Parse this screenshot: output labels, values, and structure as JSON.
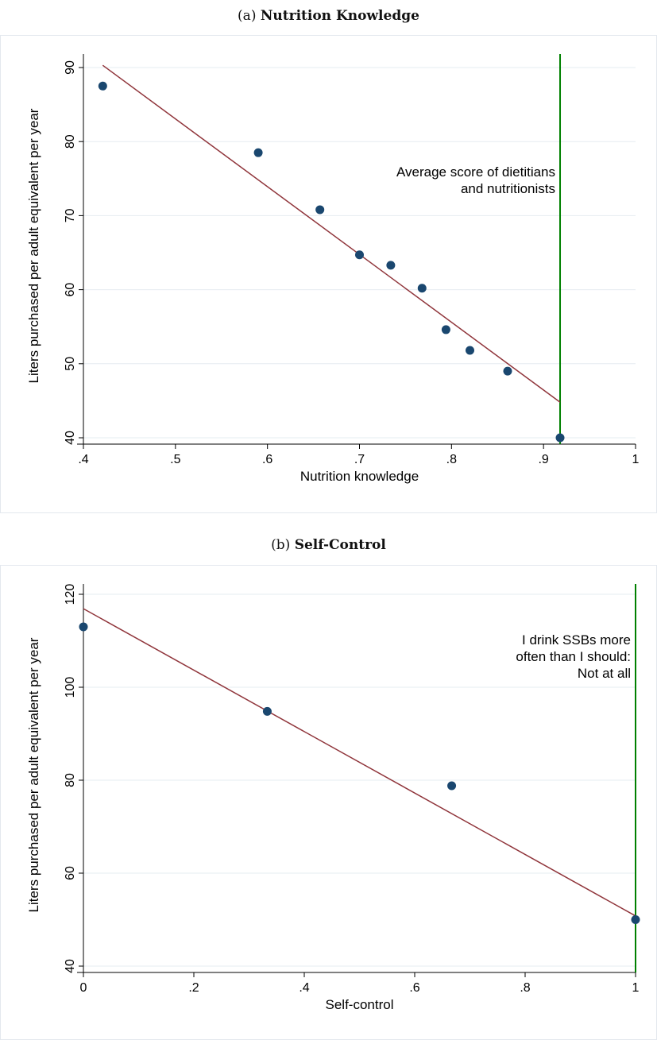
{
  "chart_data": [
    {
      "panel": "(a)",
      "title": "Nutrition Knowledge",
      "type": "scatter",
      "xlabel": "Nutrition knowledge",
      "ylabel": "Liters purchased per adult equivalent per year",
      "xlim": [
        0.4,
        1.0
      ],
      "ylim": [
        40,
        90
      ],
      "xticks": [
        ".4",
        ".5",
        ".6",
        ".7",
        ".8",
        ".9",
        "1"
      ],
      "xtick_values": [
        0.4,
        0.5,
        0.6,
        0.7,
        0.8,
        0.9,
        1.0
      ],
      "yticks": [
        "40",
        "50",
        "60",
        "70",
        "80",
        "90"
      ],
      "ytick_values": [
        40,
        50,
        60,
        70,
        80,
        90
      ],
      "grid": true,
      "points": {
        "x": [
          0.421,
          0.59,
          0.657,
          0.7,
          0.734,
          0.768,
          0.794,
          0.82,
          0.861,
          0.918
        ],
        "y": [
          87.5,
          78.5,
          70.8,
          64.7,
          63.3,
          60.2,
          54.6,
          51.8,
          49.0,
          40.0
        ]
      },
      "marker_color": "#1a476f",
      "fit_line": {
        "x": [
          0.421,
          0.918
        ],
        "y": [
          90.3,
          44.8
        ],
        "color": "#90353b"
      },
      "reference_line": {
        "x": 0.918,
        "color": "#008000"
      },
      "annotation": [
        "Average score of dietitians",
        "and nutritionists"
      ]
    },
    {
      "panel": "(b)",
      "title": "Self-Control",
      "type": "scatter",
      "xlabel": "Self-control",
      "ylabel": "Liters purchased per adult equivalent per year",
      "xlim": [
        0,
        1
      ],
      "ylim": [
        40,
        120
      ],
      "xticks": [
        "0",
        ".2",
        ".4",
        ".6",
        ".8",
        "1"
      ],
      "xtick_values": [
        0,
        0.2,
        0.4,
        0.6,
        0.8,
        1.0
      ],
      "yticks": [
        "40",
        "60",
        "80",
        "100",
        "120"
      ],
      "ytick_values": [
        40,
        60,
        80,
        100,
        120
      ],
      "grid": true,
      "points": {
        "x": [
          0,
          0.333,
          0.667,
          1.0
        ],
        "y": [
          113.0,
          94.8,
          78.8,
          50.0
        ]
      },
      "marker_color": "#1a476f",
      "fit_line": {
        "x": [
          0,
          1.0
        ],
        "y": [
          116.9,
          50.8
        ],
        "color": "#90353b"
      },
      "reference_line": {
        "x": 1.0,
        "color": "#008000"
      },
      "annotation": [
        "I drink SSBs more",
        "often than I should:",
        "Not at all"
      ]
    }
  ],
  "panel_labels": {
    "a": "(a)",
    "b": "(b)"
  }
}
